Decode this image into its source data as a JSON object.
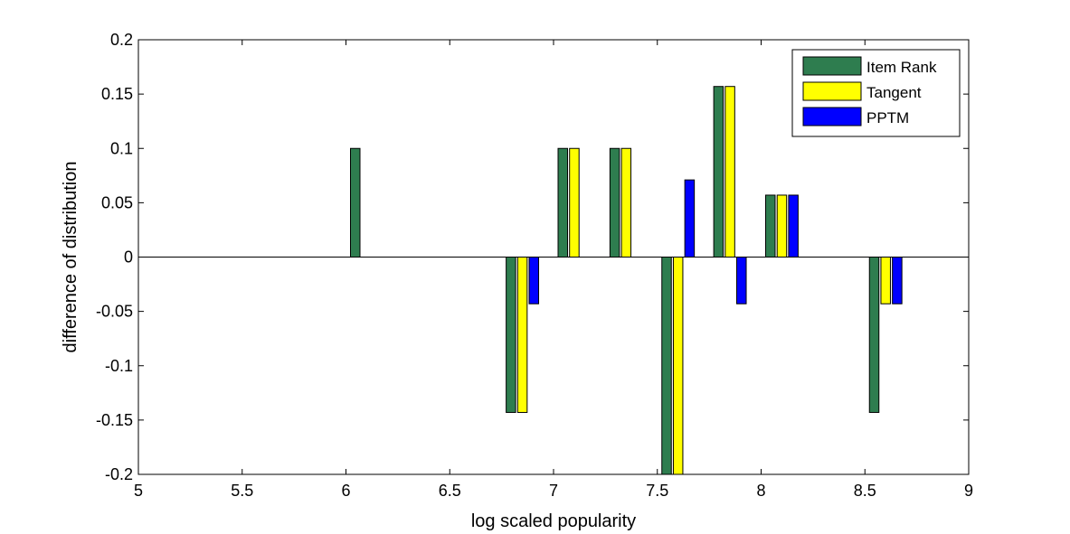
{
  "chart_data": {
    "type": "bar",
    "xlabel": "log scaled popularity",
    "ylabel": "difference of distribution",
    "xlim": [
      5,
      9
    ],
    "ylim": [
      -0.2,
      0.2
    ],
    "x_ticks": [
      "5",
      "5.5",
      "6",
      "6.5",
      "7",
      "7.5",
      "8",
      "8.5",
      "9"
    ],
    "y_ticks": [
      "0.2",
      "0.15",
      "0.1",
      "0.05",
      "0",
      "-0.05",
      "-0.1",
      "-0.15",
      "-0.2"
    ],
    "legend_position": "top-right",
    "grid": false,
    "categories": [
      6.1,
      6.85,
      7.1,
      7.35,
      7.6,
      7.85,
      8.1,
      8.6
    ],
    "series": [
      {
        "name": "Item Rank",
        "color": "#2e7d4f",
        "values": [
          0.1,
          -0.143,
          0.1,
          0.1,
          -0.2,
          0.157,
          0.057,
          -0.143
        ]
      },
      {
        "name": "Tangent",
        "color": "#ffff00",
        "values": [
          0,
          -0.143,
          0.1,
          0.1,
          -0.2,
          0.157,
          0.057,
          -0.043
        ]
      },
      {
        "name": "PPTM",
        "color": "#0000ff",
        "values": [
          0,
          -0.043,
          0,
          0,
          0.071,
          -0.043,
          0.057,
          -0.043
        ]
      }
    ]
  }
}
